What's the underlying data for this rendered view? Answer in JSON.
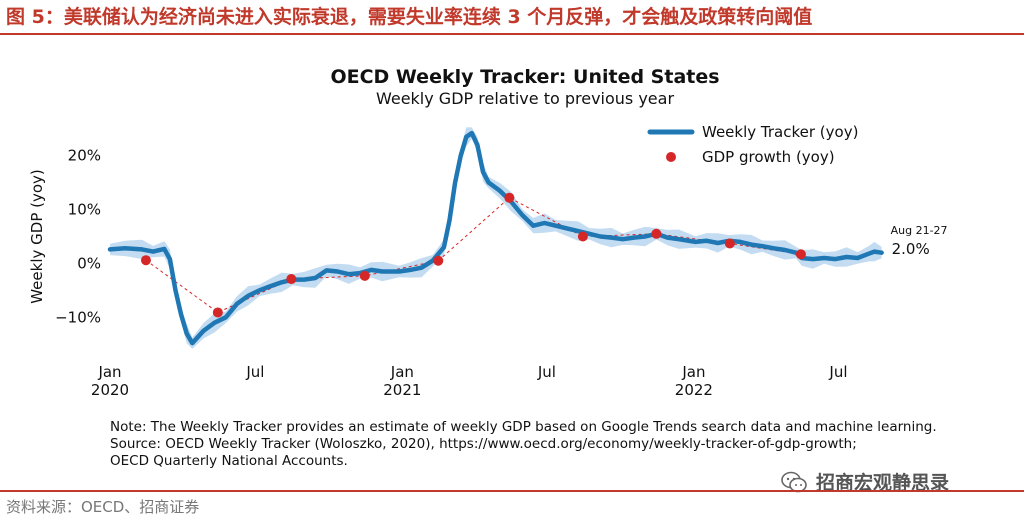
{
  "figure": {
    "caption": "图 5：美联储认为经济尚未进入实际衰退，需要失业率连续 3 个月反弹，才会触及政策转向阈值",
    "note_lines": [
      "Note: The Weekly Tracker provides an estimate of weekly GDP based on Google Trends search data and machine learning.",
      "Source: OECD Weekly Tracker (Woloszko, 2020), https://www.oecd.org/economy/weekly-tracker-of-gdp-growth;",
      "OECD Quarterly National Accounts."
    ],
    "source": "资料来源：OECD、招商证券",
    "watermark": "招商宏观静思录"
  },
  "colors": {
    "tracker": "#1f77b4",
    "band": "#b9d6ee",
    "gdp": "#d62728",
    "accent": "#c0392b"
  },
  "chart_data": {
    "type": "line",
    "title": "OECD Weekly Tracker: United States",
    "subtitle": "Weekly GDP relative to previous year",
    "ylabel": "Weekly GDP (yoy)",
    "ylim": [
      -17,
      27
    ],
    "yticks": [
      {
        "value": 20,
        "label": "20%"
      },
      {
        "value": 10,
        "label": "10%"
      },
      {
        "value": 0,
        "label": "0%"
      },
      {
        "value": -10,
        "label": "−10%"
      }
    ],
    "xlim": [
      "2020-01-01",
      "2022-09-01"
    ],
    "xticks": [
      {
        "date": "2020-01-01",
        "lines": [
          "Jan",
          "2020"
        ]
      },
      {
        "date": "2020-07-01",
        "lines": [
          "Jul"
        ]
      },
      {
        "date": "2021-01-01",
        "lines": [
          "Jan",
          "2021"
        ]
      },
      {
        "date": "2021-07-01",
        "lines": [
          "Jul"
        ]
      },
      {
        "date": "2022-01-01",
        "lines": [
          "Jan",
          "2022"
        ]
      },
      {
        "date": "2022-07-01",
        "lines": [
          "Jul"
        ]
      }
    ],
    "legend_position": "top-right",
    "grid": false,
    "series": [
      {
        "name": "Weekly Tracker (yoy)",
        "style": "thick-line",
        "points": [
          [
            "2020-01-01",
            2.6
          ],
          [
            "2020-01-20",
            2.8
          ],
          [
            "2020-02-10",
            2.6
          ],
          [
            "2020-02-24",
            2.2
          ],
          [
            "2020-03-09",
            2.7
          ],
          [
            "2020-03-16",
            0.8
          ],
          [
            "2020-03-23",
            -5.0
          ],
          [
            "2020-03-30",
            -9.5
          ],
          [
            "2020-04-06",
            -13.0
          ],
          [
            "2020-04-13",
            -14.8
          ],
          [
            "2020-04-27",
            -12.5
          ],
          [
            "2020-05-11",
            -11.0
          ],
          [
            "2020-05-25",
            -10.0
          ],
          [
            "2020-06-08",
            -7.5
          ],
          [
            "2020-06-22",
            -6.0
          ],
          [
            "2020-07-06",
            -5.0
          ],
          [
            "2020-07-20",
            -4.2
          ],
          [
            "2020-08-03",
            -3.5
          ],
          [
            "2020-08-17",
            -3.0
          ],
          [
            "2020-08-31",
            -3.0
          ],
          [
            "2020-09-14",
            -2.7
          ],
          [
            "2020-09-28",
            -1.3
          ],
          [
            "2020-10-12",
            -1.5
          ],
          [
            "2020-10-26",
            -2.0
          ],
          [
            "2020-11-09",
            -1.8
          ],
          [
            "2020-11-23",
            -1.2
          ],
          [
            "2020-12-07",
            -1.5
          ],
          [
            "2020-12-28",
            -1.5
          ],
          [
            "2021-01-11",
            -1.2
          ],
          [
            "2021-01-25",
            -0.8
          ],
          [
            "2021-02-08",
            0.5
          ],
          [
            "2021-02-22",
            3.0
          ],
          [
            "2021-03-01",
            8.0
          ],
          [
            "2021-03-08",
            15.0
          ],
          [
            "2021-03-15",
            20.0
          ],
          [
            "2021-03-22",
            23.5
          ],
          [
            "2021-03-29",
            24.2
          ],
          [
            "2021-04-05",
            22.0
          ],
          [
            "2021-04-12",
            17.0
          ],
          [
            "2021-04-19",
            15.0
          ],
          [
            "2021-05-03",
            13.5
          ],
          [
            "2021-05-17",
            11.5
          ],
          [
            "2021-05-31",
            9.0
          ],
          [
            "2021-06-14",
            7.0
          ],
          [
            "2021-06-28",
            7.5
          ],
          [
            "2021-07-12",
            7.0
          ],
          [
            "2021-07-26",
            6.5
          ],
          [
            "2021-08-09",
            6.0
          ],
          [
            "2021-08-23",
            5.5
          ],
          [
            "2021-09-06",
            5.0
          ],
          [
            "2021-09-20",
            4.8
          ],
          [
            "2021-10-04",
            4.5
          ],
          [
            "2021-10-18",
            4.8
          ],
          [
            "2021-11-01",
            5.0
          ],
          [
            "2021-11-15",
            5.5
          ],
          [
            "2021-11-29",
            4.8
          ],
          [
            "2021-12-13",
            4.5
          ],
          [
            "2022-01-03",
            4.0
          ],
          [
            "2022-01-17",
            4.2
          ],
          [
            "2022-01-31",
            3.8
          ],
          [
            "2022-02-14",
            4.2
          ],
          [
            "2022-02-28",
            4.0
          ],
          [
            "2022-03-14",
            3.5
          ],
          [
            "2022-03-28",
            3.2
          ],
          [
            "2022-04-11",
            2.8
          ],
          [
            "2022-04-25",
            2.5
          ],
          [
            "2022-05-09",
            2.0
          ],
          [
            "2022-05-16",
            1.0
          ],
          [
            "2022-05-30",
            0.8
          ],
          [
            "2022-06-13",
            1.0
          ],
          [
            "2022-06-27",
            0.8
          ],
          [
            "2022-07-11",
            1.2
          ],
          [
            "2022-07-25",
            1.0
          ],
          [
            "2022-08-08",
            1.8
          ],
          [
            "2022-08-15",
            2.2
          ],
          [
            "2022-08-24",
            2.0
          ]
        ]
      },
      {
        "name": "GDP growth (yoy)",
        "style": "markers-dashed",
        "points": [
          [
            "2020-02-15",
            0.6
          ],
          [
            "2020-05-15",
            -9.1
          ],
          [
            "2020-08-15",
            -2.9
          ],
          [
            "2020-11-15",
            -2.3
          ],
          [
            "2021-02-15",
            0.5
          ],
          [
            "2021-05-15",
            12.2
          ],
          [
            "2021-08-15",
            5.0
          ],
          [
            "2021-11-15",
            5.5
          ],
          [
            "2022-02-15",
            3.7
          ],
          [
            "2022-05-15",
            1.7
          ]
        ]
      }
    ],
    "annotation": {
      "date": "2022-08-24",
      "label_top": "Aug 21-27",
      "label_value": "2.0%"
    }
  }
}
